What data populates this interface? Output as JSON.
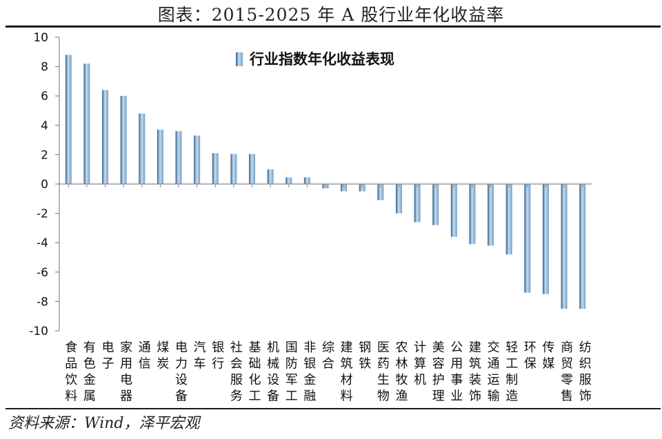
{
  "header": {
    "title": "图表：2015-2025 年 A 股行业年化收益率"
  },
  "footer": {
    "source": "资料来源：Wind，泽平宏观"
  },
  "colors": {
    "bar": "#6f9fcb",
    "bar_dark": "#2f5f8f",
    "bar_light": "#c8dcef",
    "axis": "#888888"
  },
  "chart_data": {
    "type": "bar",
    "legend": [
      "行业指数年化收益表现"
    ],
    "legend_position": "top-center",
    "grid": false,
    "ylim": [
      -10,
      10
    ],
    "yticks": [
      "10",
      "8",
      "6",
      "4",
      "2",
      "0",
      "-2",
      "-4",
      "-6",
      "-8",
      "-10"
    ],
    "categories": [
      "食品饮料",
      "有色金属",
      "电子",
      "家用电器",
      "通信",
      "煤炭",
      "电力设备",
      "汽车",
      "银行",
      "社会服务",
      "基础化工",
      "机械设备",
      "国防军工",
      "非银金融",
      "综合",
      "建筑材料",
      "钢铁",
      "医药生物",
      "农林牧渔",
      "计算机",
      "美容护理",
      "公用事业",
      "建筑装饰",
      "交通运输",
      "轻工制造",
      "环保",
      "传媒",
      "商贸零售",
      "纺织服饰"
    ],
    "category_lines": [
      [
        "食",
        "品",
        "饮",
        "料"
      ],
      [
        "有",
        "色",
        "金",
        "属"
      ],
      [
        "电",
        "子"
      ],
      [
        "家",
        "用",
        "电",
        "器"
      ],
      [
        "通",
        "信"
      ],
      [
        "煤",
        "炭"
      ],
      [
        "电",
        "力",
        "设",
        "备"
      ],
      [
        "汽",
        "车"
      ],
      [
        "银",
        "行"
      ],
      [
        "社",
        "会",
        "服",
        "务"
      ],
      [
        "基",
        "础",
        "化",
        "工"
      ],
      [
        "机",
        "械",
        "设",
        "备"
      ],
      [
        "国",
        "防",
        "军",
        "工"
      ],
      [
        "非",
        "银",
        "金",
        "融"
      ],
      [
        "综",
        "合"
      ],
      [
        "建",
        "筑",
        "材",
        "料"
      ],
      [
        "钢",
        "铁"
      ],
      [
        "医",
        "药",
        "生",
        "物"
      ],
      [
        "农",
        "林",
        "牧",
        "渔"
      ],
      [
        "计",
        "算",
        "机"
      ],
      [
        "美",
        "容",
        "护",
        "理"
      ],
      [
        "公",
        "用",
        "事",
        "业"
      ],
      [
        "建",
        "筑",
        "装",
        "饰"
      ],
      [
        "交",
        "通",
        "运",
        "输"
      ],
      [
        "轻",
        "工",
        "制",
        "造"
      ],
      [
        "环",
        "保"
      ],
      [
        "传",
        "媒"
      ],
      [
        "商",
        "贸",
        "零",
        "售"
      ],
      [
        "纺",
        "织",
        "服",
        "饰"
      ]
    ],
    "values": [
      8.8,
      8.2,
      6.4,
      6.0,
      4.8,
      3.7,
      3.6,
      3.3,
      2.1,
      2.05,
      2.05,
      1.0,
      0.45,
      0.45,
      -0.3,
      -0.5,
      -0.5,
      -1.1,
      -2.0,
      -2.6,
      -2.8,
      -3.6,
      -4.1,
      -4.2,
      -4.8,
      -7.4,
      -7.5,
      -8.5,
      -8.5
    ]
  }
}
